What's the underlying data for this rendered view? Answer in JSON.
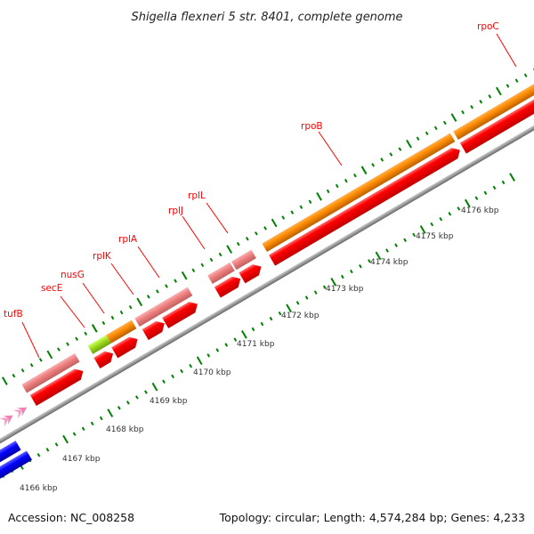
{
  "title": "Shigella flexneri 5 str. 8401, complete genome",
  "footer": {
    "accession": "Accession: NC_008258",
    "info": "Topology: circular; Length: 4,574,284 bp; Genes: 4,233"
  },
  "genes": [
    "tufB",
    "secE",
    "nusG",
    "rplK",
    "rplA",
    "rplJ",
    "rplL",
    "rpoB",
    "rpoC"
  ],
  "scale_labels": [
    "4166 kbp",
    "4167 kbp",
    "4168 kbp",
    "4169 kbp",
    "4170 kbp",
    "4171 kbp",
    "4172 kbp",
    "4173 kbp",
    "4174 kbp",
    "4175 kbp",
    "4176 kbp"
  ],
  "colors": {
    "gene_label": "#ff0000",
    "cds_forward": "#ff0000",
    "rrna_like": "#f08080",
    "orange": "#ff8c00",
    "green": "#a0e020",
    "blue": "#0000ff",
    "ticks": "#008000",
    "backbone": "#888888"
  }
}
